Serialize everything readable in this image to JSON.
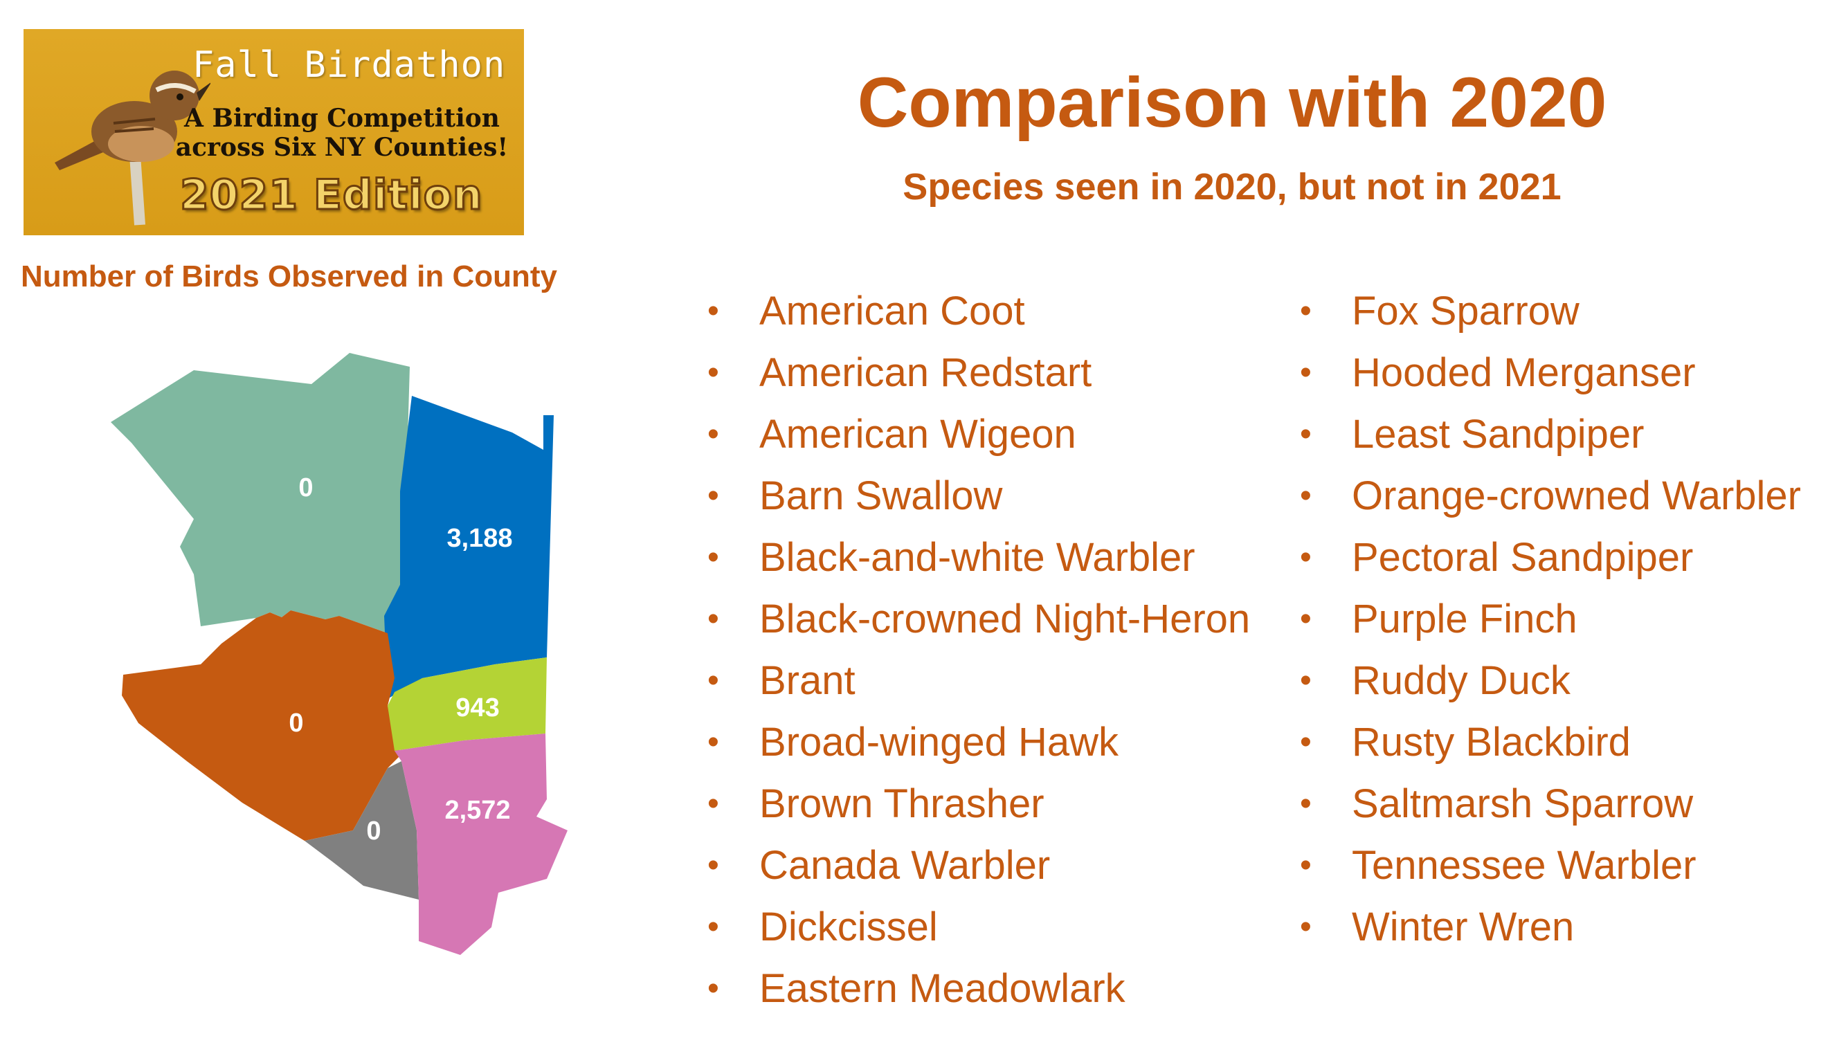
{
  "banner": {
    "title": "Fall Birdathon",
    "subtitle_line1": "A Birding Competition",
    "subtitle_line2": "across Six NY Counties!",
    "edition": "2021 Edition"
  },
  "title": "Comparison with 2020",
  "subtitle": "Species seen in 2020, but not in 2021",
  "map": {
    "heading": "Number of Birds Observed in County",
    "regions": [
      {
        "value": "0",
        "color": "#7fb8a0"
      },
      {
        "value": "3,188",
        "color": "#0070c0"
      },
      {
        "value": "0",
        "color": "#c55a11"
      },
      {
        "value": "943",
        "color": "#b4d335"
      },
      {
        "value": "0",
        "color": "#808080"
      },
      {
        "value": "2,572",
        "color": "#d677b4"
      }
    ]
  },
  "species_col1": [
    "American Coot",
    "American Redstart",
    "American Wigeon",
    "Barn Swallow",
    "Black-and-white Warbler",
    "Black-crowned Night-Heron",
    "Brant",
    "Broad-winged Hawk",
    "Brown Thrasher",
    "Canada Warbler",
    "Dickcissel",
    "Eastern Meadowlark"
  ],
  "species_col2": [
    "Fox Sparrow",
    "Hooded Merganser",
    "Least Sandpiper",
    "Orange-crowned Warbler",
    "Pectoral Sandpiper",
    "Purple Finch",
    "Ruddy Duck",
    "Rusty Blackbird",
    "Saltmarsh Sparrow",
    "Tennessee Warbler",
    "Winter Wren"
  ],
  "colors": {
    "accent": "#c55a11",
    "banner": "#d89c18"
  }
}
